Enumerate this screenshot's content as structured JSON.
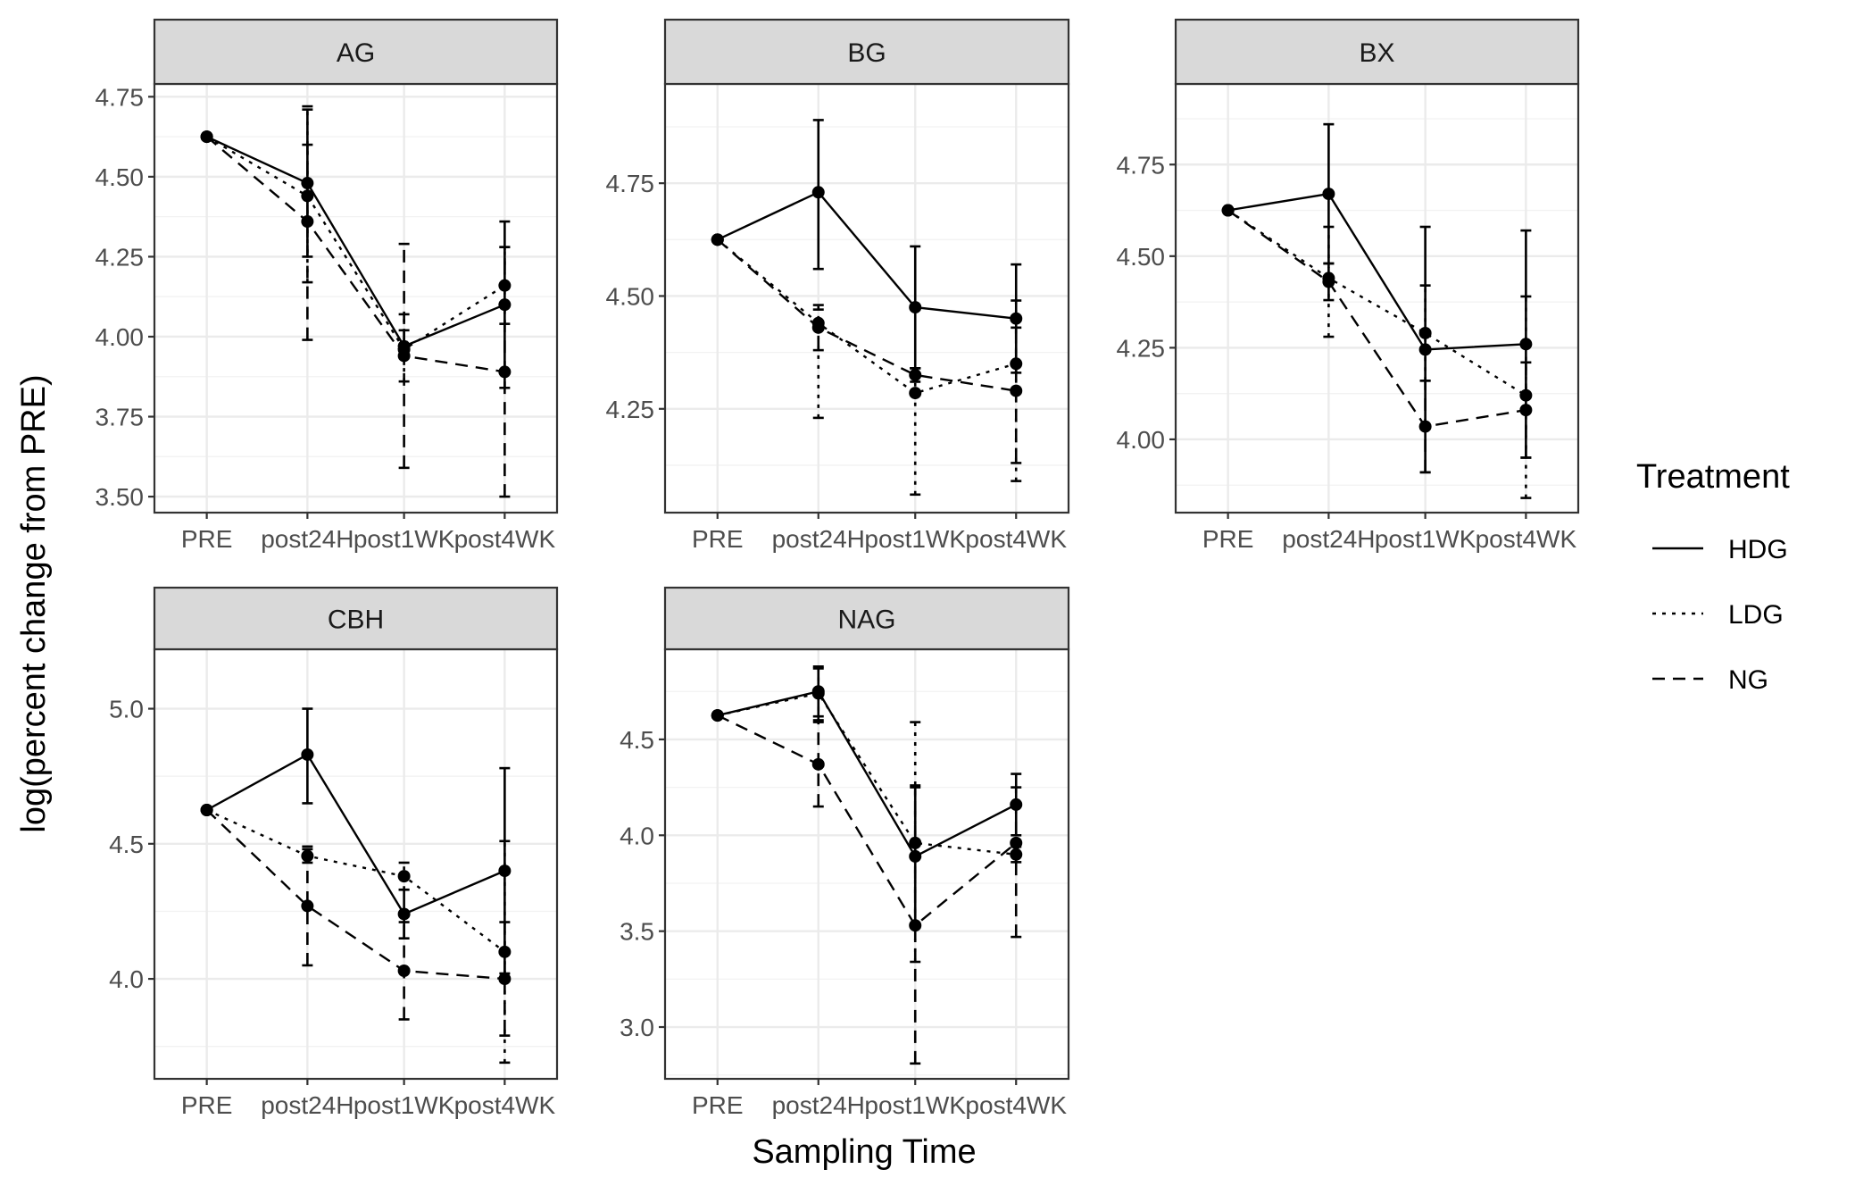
{
  "chart_data": {
    "type": "line",
    "x_label": "Sampling Time",
    "y_label": "log(percent change from PRE)",
    "categories": [
      "PRE",
      "post24H",
      "post1WK",
      "post4WK"
    ],
    "legend": {
      "title": "Treatment",
      "position": "right",
      "entries": [
        {
          "name": "HDG",
          "linetype": "solid"
        },
        {
          "name": "LDG",
          "linetype": "dotted"
        },
        {
          "name": "NG",
          "linetype": "dashed"
        }
      ]
    },
    "grid": true,
    "panels": [
      {
        "title": "AG",
        "ylim": [
          3.45,
          4.79
        ],
        "yticks": [
          3.5,
          3.75,
          4.0,
          4.25,
          4.5,
          4.75
        ],
        "ytick_labels": [
          "3.50",
          "3.75",
          "4.00",
          "4.25",
          "4.50",
          "4.75"
        ],
        "series": [
          {
            "name": "HDG",
            "values": [
              4.625,
              4.48,
              3.97,
              4.1
            ],
            "err_low": [
              4.625,
              4.25,
              3.94,
              3.84
            ],
            "err_high": [
              4.625,
              4.71,
              4.02,
              4.36
            ]
          },
          {
            "name": "LDG",
            "values": [
              4.625,
              4.44,
              3.96,
              4.16
            ],
            "err_low": [
              4.625,
              4.17,
              3.86,
              4.04
            ],
            "err_high": [
              4.625,
              4.72,
              4.07,
              4.28
            ]
          },
          {
            "name": "NG",
            "values": [
              4.625,
              4.36,
              3.94,
              3.89
            ],
            "err_low": [
              4.625,
              3.99,
              3.59,
              3.5
            ],
            "err_high": [
              4.625,
              4.6,
              4.29,
              4.28
            ]
          }
        ]
      },
      {
        "title": "BG",
        "ylim": [
          4.02,
          4.97
        ],
        "yticks": [
          4.25,
          4.5,
          4.75
        ],
        "ytick_labels": [
          "4.25",
          "4.50",
          "4.75"
        ],
        "series": [
          {
            "name": "HDG",
            "values": [
              4.625,
              4.73,
              4.475,
              4.45
            ],
            "err_low": [
              4.625,
              4.56,
              4.34,
              4.33
            ],
            "err_high": [
              4.625,
              4.89,
              4.61,
              4.57
            ]
          },
          {
            "name": "LDG",
            "values": [
              4.625,
              4.44,
              4.285,
              4.35
            ],
            "err_low": [
              4.625,
              4.23,
              4.06,
              4.09
            ],
            "err_high": [
              4.625,
              4.48,
              4.34,
              4.49
            ]
          },
          {
            "name": "NG",
            "values": [
              4.625,
              4.43,
              4.325,
              4.29
            ],
            "err_low": [
              4.625,
              4.38,
              4.31,
              4.13
            ],
            "err_high": [
              4.625,
              4.47,
              4.34,
              4.43
            ]
          }
        ]
      },
      {
        "title": "BX",
        "ylim": [
          3.8,
          4.97
        ],
        "yticks": [
          4.0,
          4.25,
          4.5,
          4.75
        ],
        "ytick_labels": [
          "4.00",
          "4.25",
          "4.50",
          "4.75"
        ],
        "series": [
          {
            "name": "HDG",
            "values": [
              4.625,
              4.67,
              4.245,
              4.26
            ],
            "err_low": [
              4.625,
              4.48,
              3.91,
              3.95
            ],
            "err_high": [
              4.625,
              4.86,
              4.58,
              4.57
            ]
          },
          {
            "name": "LDG",
            "values": [
              4.625,
              4.44,
              4.29,
              4.12
            ],
            "err_low": [
              4.625,
              4.28,
              4.16,
              3.84
            ],
            "err_high": [
              4.625,
              4.58,
              4.42,
              4.39
            ]
          },
          {
            "name": "NG",
            "values": [
              4.625,
              4.43,
              4.035,
              4.08
            ],
            "err_low": [
              4.625,
              4.38,
              3.91,
              3.95
            ],
            "err_high": [
              4.625,
              4.48,
              4.16,
              4.21
            ]
          }
        ]
      },
      {
        "title": "CBH",
        "ylim": [
          3.63,
          5.22
        ],
        "yticks": [
          4.0,
          4.5,
          5.0
        ],
        "ytick_labels": [
          "4.0",
          "4.5",
          "5.0"
        ],
        "series": [
          {
            "name": "HDG",
            "values": [
              4.625,
              4.83,
              4.24,
              4.4
            ],
            "err_low": [
              4.625,
              4.65,
              4.15,
              4.02
            ],
            "err_high": [
              4.625,
              5.0,
              4.33,
              4.78
            ]
          },
          {
            "name": "LDG",
            "values": [
              4.625,
              4.455,
              4.38,
              4.1
            ],
            "err_low": [
              4.625,
              4.43,
              4.33,
              3.69
            ],
            "err_high": [
              4.625,
              4.48,
              4.43,
              4.51
            ]
          },
          {
            "name": "NG",
            "values": [
              4.625,
              4.27,
              4.03,
              4.0
            ],
            "err_low": [
              4.625,
              4.05,
              3.85,
              3.79
            ],
            "err_high": [
              4.625,
              4.49,
              4.21,
              4.21
            ]
          }
        ]
      },
      {
        "title": "NAG",
        "ylim": [
          2.73,
          4.97
        ],
        "yticks": [
          3.0,
          3.5,
          4.0,
          4.5
        ],
        "ytick_labels": [
          "3.0",
          "3.5",
          "4.0",
          "4.5"
        ],
        "series": [
          {
            "name": "HDG",
            "values": [
              4.625,
              4.75,
              3.89,
              4.16
            ],
            "err_low": [
              4.625,
              4.62,
              3.52,
              4.0
            ],
            "err_high": [
              4.625,
              4.87,
              4.26,
              4.32
            ]
          },
          {
            "name": "LDG",
            "values": [
              4.625,
              4.74,
              3.96,
              3.9
            ],
            "err_low": [
              4.625,
              4.6,
              3.34,
              3.86
            ],
            "err_high": [
              4.625,
              4.88,
              4.59,
              3.94
            ]
          },
          {
            "name": "NG",
            "values": [
              4.625,
              4.37,
              3.53,
              3.96
            ],
            "err_low": [
              4.625,
              4.15,
              2.81,
              3.47
            ],
            "err_high": [
              4.625,
              4.59,
              4.25,
              4.25
            ]
          }
        ]
      }
    ]
  }
}
